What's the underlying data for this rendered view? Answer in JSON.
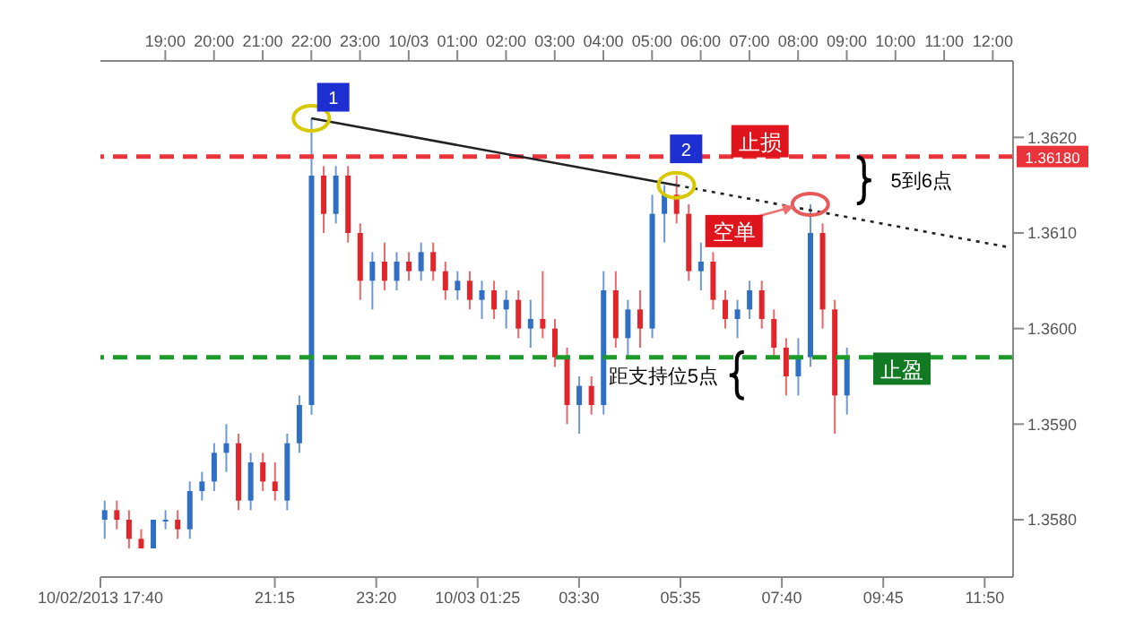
{
  "chart_data": {
    "type": "candlestick",
    "x": [
      "2013-10-02T17:45",
      "2013-10-02T18:00",
      "2013-10-02T18:15",
      "2013-10-02T18:30",
      "2013-10-02T18:45",
      "2013-10-02T19:00",
      "2013-10-02T19:15",
      "2013-10-02T19:30",
      "2013-10-02T19:45",
      "2013-10-02T20:00",
      "2013-10-02T20:15",
      "2013-10-02T20:30",
      "2013-10-02T20:45",
      "2013-10-02T21:00",
      "2013-10-02T21:15",
      "2013-10-02T21:30",
      "2013-10-02T21:45",
      "2013-10-02T22:00",
      "2013-10-02T22:15",
      "2013-10-02T22:30",
      "2013-10-02T22:45",
      "2013-10-02T23:00",
      "2013-10-02T23:15",
      "2013-10-02T23:30",
      "2013-10-02T23:45",
      "2013-10-03T00:00",
      "2013-10-03T00:15",
      "2013-10-03T00:30",
      "2013-10-03T00:45",
      "2013-10-03T01:00",
      "2013-10-03T01:15",
      "2013-10-03T01:30",
      "2013-10-03T01:45",
      "2013-10-03T02:00",
      "2013-10-03T02:15",
      "2013-10-03T02:30",
      "2013-10-03T02:45",
      "2013-10-03T03:00",
      "2013-10-03T03:15",
      "2013-10-03T03:30",
      "2013-10-03T03:45",
      "2013-10-03T04:00",
      "2013-10-03T04:15",
      "2013-10-03T04:30",
      "2013-10-03T04:45",
      "2013-10-03T05:00",
      "2013-10-03T05:15",
      "2013-10-03T05:30",
      "2013-10-03T05:45",
      "2013-10-03T06:00",
      "2013-10-03T06:15",
      "2013-10-03T06:30",
      "2013-10-03T06:45",
      "2013-10-03T07:00",
      "2013-10-03T07:15",
      "2013-10-03T07:30",
      "2013-10-03T07:45",
      "2013-10-03T08:00",
      "2013-10-03T08:15",
      "2013-10-03T08:30",
      "2013-10-03T08:45",
      "2013-10-03T09:00"
    ],
    "ohlc": [
      [
        1.358,
        1.3582,
        1.3578,
        1.3581
      ],
      [
        1.3581,
        1.3582,
        1.3579,
        1.358
      ],
      [
        1.358,
        1.3581,
        1.3577,
        1.3578
      ],
      [
        1.3578,
        1.3579,
        1.3577,
        1.3577
      ],
      [
        1.3577,
        1.358,
        1.3577,
        1.358
      ],
      [
        1.358,
        1.3581,
        1.3579,
        1.358
      ],
      [
        1.358,
        1.3581,
        1.3578,
        1.3579
      ],
      [
        1.3579,
        1.3584,
        1.3578,
        1.3583
      ],
      [
        1.3583,
        1.3585,
        1.3582,
        1.3584
      ],
      [
        1.3584,
        1.3588,
        1.3583,
        1.3587
      ],
      [
        1.3587,
        1.359,
        1.3585,
        1.3588
      ],
      [
        1.3588,
        1.3589,
        1.3581,
        1.3582
      ],
      [
        1.3582,
        1.3587,
        1.3581,
        1.3586
      ],
      [
        1.3586,
        1.3587,
        1.3583,
        1.3584
      ],
      [
        1.3584,
        1.3586,
        1.3582,
        1.3583
      ],
      [
        1.3582,
        1.3589,
        1.3581,
        1.3588
      ],
      [
        1.3588,
        1.3593,
        1.3587,
        1.3592
      ],
      [
        1.3592,
        1.3622,
        1.3591,
        1.3616
      ],
      [
        1.3616,
        1.3617,
        1.361,
        1.3612
      ],
      [
        1.3612,
        1.3617,
        1.3611,
        1.3616
      ],
      [
        1.3616,
        1.3617,
        1.3609,
        1.361
      ],
      [
        1.361,
        1.3611,
        1.3603,
        1.3605
      ],
      [
        1.3605,
        1.3608,
        1.3602,
        1.3607
      ],
      [
        1.3607,
        1.3609,
        1.3604,
        1.3605
      ],
      [
        1.3605,
        1.3608,
        1.3604,
        1.3607
      ],
      [
        1.3607,
        1.3608,
        1.3605,
        1.3606
      ],
      [
        1.3606,
        1.3609,
        1.3605,
        1.3608
      ],
      [
        1.3608,
        1.3609,
        1.3605,
        1.3606
      ],
      [
        1.3606,
        1.3607,
        1.3603,
        1.3604
      ],
      [
        1.3604,
        1.3606,
        1.3603,
        1.3605
      ],
      [
        1.3605,
        1.3606,
        1.3602,
        1.3603
      ],
      [
        1.3603,
        1.3605,
        1.3601,
        1.3604
      ],
      [
        1.3604,
        1.3605,
        1.3601,
        1.3602
      ],
      [
        1.3602,
        1.3604,
        1.36,
        1.3603
      ],
      [
        1.3603,
        1.3604,
        1.3599,
        1.36
      ],
      [
        1.36,
        1.3603,
        1.3598,
        1.3601
      ],
      [
        1.3601,
        1.3606,
        1.3599,
        1.36
      ],
      [
        1.36,
        1.3601,
        1.3596,
        1.3597
      ],
      [
        1.3597,
        1.3598,
        1.359,
        1.3592
      ],
      [
        1.3592,
        1.3595,
        1.3589,
        1.3594
      ],
      [
        1.3594,
        1.3595,
        1.3591,
        1.3592
      ],
      [
        1.3592,
        1.3606,
        1.3591,
        1.3604
      ],
      [
        1.3604,
        1.3606,
        1.3598,
        1.3599
      ],
      [
        1.3599,
        1.3603,
        1.3597,
        1.3602
      ],
      [
        1.3602,
        1.3604,
        1.3598,
        1.36
      ],
      [
        1.36,
        1.3614,
        1.3599,
        1.3612
      ],
      [
        1.3612,
        1.3615,
        1.3609,
        1.3614
      ],
      [
        1.3614,
        1.3616,
        1.3611,
        1.3612
      ],
      [
        1.3612,
        1.3613,
        1.3605,
        1.3606
      ],
      [
        1.3606,
        1.3609,
        1.3604,
        1.3607
      ],
      [
        1.3607,
        1.3608,
        1.3602,
        1.3603
      ],
      [
        1.3603,
        1.3604,
        1.36,
        1.3601
      ],
      [
        1.3601,
        1.3603,
        1.3599,
        1.3602
      ],
      [
        1.3602,
        1.3605,
        1.3601,
        1.3604
      ],
      [
        1.3604,
        1.3605,
        1.36,
        1.3601
      ],
      [
        1.3601,
        1.3602,
        1.3597,
        1.3598
      ],
      [
        1.3598,
        1.3599,
        1.3593,
        1.3595
      ],
      [
        1.3595,
        1.3599,
        1.3593,
        1.3597
      ],
      [
        1.3597,
        1.3613,
        1.3596,
        1.361
      ],
      [
        1.361,
        1.3611,
        1.36,
        1.3602
      ],
      [
        1.3602,
        1.3603,
        1.3589,
        1.3593
      ],
      [
        1.3593,
        1.3598,
        1.3591,
        1.3597
      ]
    ],
    "series": [
      {
        "type": "line",
        "color": "#222222",
        "line_style": "solid",
        "marker": "circle",
        "x": [
          "2013-10-02T22:00",
          "2013-10-03T05:30"
        ],
        "values": [
          1.3622,
          1.3615
        ]
      },
      {
        "type": "line",
        "color": "#222222",
        "line_style": "dotted",
        "x": [
          "2013-10-03T05:30",
          "2013-10-03T12:20"
        ],
        "values": [
          1.3615,
          1.36085
        ]
      }
    ],
    "xlim": [
      "2013-10-02T17:40",
      "2013-10-03T12:25"
    ],
    "xticks": [
      {
        "value": "2013-10-02T17:40",
        "label": "10/02/2013 17:40"
      },
      {
        "value": "2013-10-02T21:15",
        "label": "21:15"
      },
      {
        "value": "2013-10-02T23:20",
        "label": "23:20"
      },
      {
        "value": "2013-10-03T01:25",
        "label": "10/03 01:25"
      },
      {
        "value": "2013-10-03T03:30",
        "label": "03:30"
      },
      {
        "value": "2013-10-03T05:35",
        "label": "05:35"
      },
      {
        "value": "2013-10-03T07:40",
        "label": "07:40"
      },
      {
        "value": "2013-10-03T09:45",
        "label": "09:45"
      },
      {
        "value": "2013-10-03T11:50",
        "label": "11:50"
      }
    ],
    "x2lim": [
      "2013-10-02T17:40",
      "2013-10-03T12:25"
    ],
    "x2ticks": [
      {
        "value": "2013-10-02T19:00",
        "label": "19:00"
      },
      {
        "value": "2013-10-02T20:00",
        "label": "20:00"
      },
      {
        "value": "2013-10-02T21:00",
        "label": "21:00"
      },
      {
        "value": "2013-10-02T22:00",
        "label": "22:00"
      },
      {
        "value": "2013-10-02T23:00",
        "label": "23:00"
      },
      {
        "value": "2013-10-03T00:00",
        "label": "10/03"
      },
      {
        "value": "2013-10-03T01:00",
        "label": "01:00"
      },
      {
        "value": "2013-10-03T02:00",
        "label": "02:00"
      },
      {
        "value": "2013-10-03T03:00",
        "label": "03:00"
      },
      {
        "value": "2013-10-03T04:00",
        "label": "04:00"
      },
      {
        "value": "2013-10-03T05:00",
        "label": "05:00"
      },
      {
        "value": "2013-10-03T06:00",
        "label": "06:00"
      },
      {
        "value": "2013-10-03T07:00",
        "label": "07:00"
      },
      {
        "value": "2013-10-03T08:00",
        "label": "08:00"
      },
      {
        "value": "2013-10-03T09:00",
        "label": "09:00"
      },
      {
        "value": "2013-10-03T10:00",
        "label": "10:00"
      },
      {
        "value": "2013-10-03T11:00",
        "label": "11:00"
      },
      {
        "value": "2013-10-03T12:00",
        "label": "12:00"
      }
    ],
    "ylim": [
      1.3574,
      1.3628
    ],
    "yticks": [
      {
        "value": 1.358,
        "label": "1.3580"
      },
      {
        "value": 1.359,
        "label": "1.3590"
      },
      {
        "value": 1.36,
        "label": "1.3600"
      },
      {
        "value": 1.361,
        "label": "1.3610"
      },
      {
        "value": 1.362,
        "label": "1.3620"
      }
    ],
    "ref_lines": [
      {
        "axis": "y",
        "value": 1.3618,
        "label": "1.36180",
        "color": "#e8343a",
        "line_style": "dashed"
      },
      {
        "axis": "y",
        "value": 1.3597,
        "color": "#1e9a2a",
        "line_style": "dashed"
      }
    ],
    "annotations": [
      {
        "text": "1",
        "x": "2013-10-02T22:27",
        "y": 1.36242
      },
      {
        "text": "2",
        "x": "2013-10-03T05:42",
        "y": 1.36188
      },
      {
        "text": "止损",
        "x": "2013-10-03T07:13",
        "y": 1.36196
      },
      "5到6点",
      {
        "text": "空单",
        "x": "2013-10-03T06:41",
        "y": 1.36102
      },
      "距支持位5点",
      {
        "text": "止盈",
        "x": "2013-10-03T10:08",
        "y": 1.35958
      }
    ],
    "grid": false
  }
}
